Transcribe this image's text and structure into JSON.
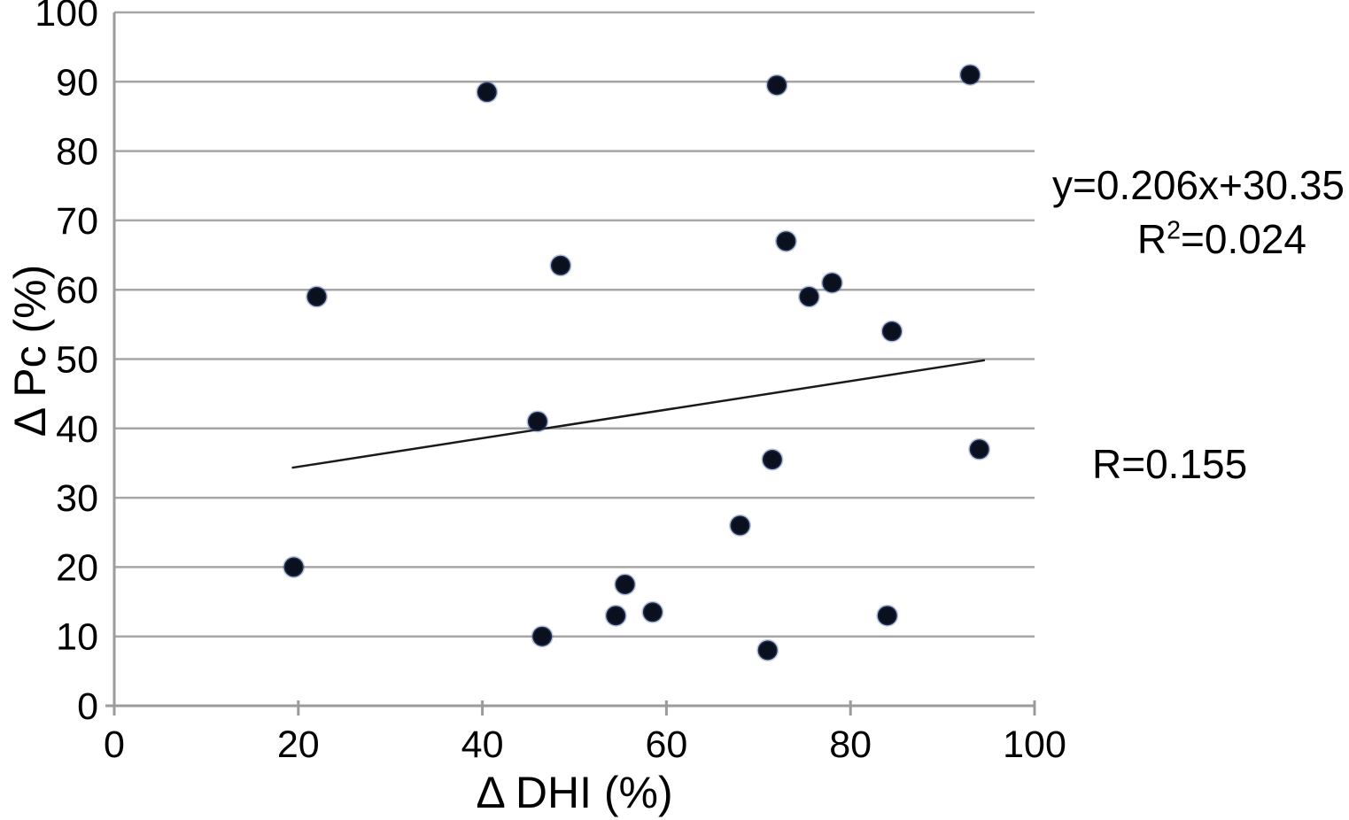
{
  "annotations": {
    "equation": "y=0.206x+30.35",
    "r2_prefix": "R",
    "r2_sup": "2",
    "r2_rest": "=0.024",
    "r_value": "R=0.155"
  },
  "chart_data": {
    "type": "scatter",
    "title": "",
    "xlabel": "Δ DHI (%)",
    "ylabel": "Δ Pc (%)",
    "xlim": [
      0,
      100
    ],
    "ylim": [
      0,
      100
    ],
    "x_ticks": [
      0,
      20,
      40,
      60,
      80,
      100
    ],
    "y_ticks": [
      0,
      10,
      20,
      30,
      40,
      50,
      60,
      70,
      80,
      90,
      100
    ],
    "grid": "horizontal",
    "legend": "none",
    "points": [
      [
        40.5,
        88.5
      ],
      [
        72,
        89.5
      ],
      [
        93,
        91
      ],
      [
        22,
        59
      ],
      [
        48.5,
        63.5
      ],
      [
        73,
        67
      ],
      [
        75.5,
        59
      ],
      [
        78,
        61
      ],
      [
        84.5,
        54
      ],
      [
        46,
        41
      ],
      [
        71.5,
        35.5
      ],
      [
        94,
        37
      ],
      [
        68,
        26
      ],
      [
        19.5,
        20
      ],
      [
        55.5,
        17.5
      ],
      [
        54.5,
        13
      ],
      [
        58.5,
        13.5
      ],
      [
        46.5,
        10
      ],
      [
        84,
        13
      ],
      [
        71,
        8
      ]
    ],
    "trendline": {
      "slope": 0.206,
      "intercept": 30.35,
      "x_start": 19.4,
      "x_end": 94.5,
      "equation": "y=0.206x+30.35",
      "r_squared": 0.024,
      "r": 0.155
    },
    "colors": {
      "point": "#0b101f",
      "point_halo": "#3e5c9e",
      "gridline": "#a6a6a6",
      "axis": "#9b9b9b",
      "trendline": "#1a1a1a",
      "text": "#000000",
      "background": "#ffffff"
    }
  }
}
